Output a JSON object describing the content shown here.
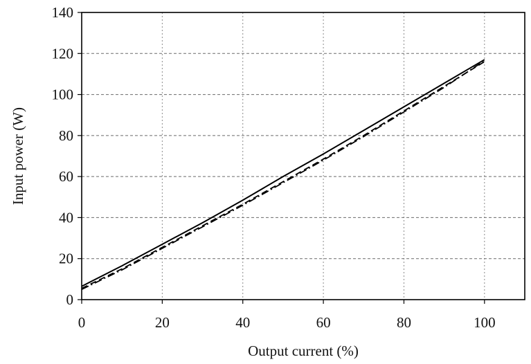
{
  "chart_data": {
    "type": "line",
    "title": "",
    "xlabel": "Output current (%)",
    "ylabel": "Input power (W)",
    "xlim": [
      0,
      110
    ],
    "ylim": [
      0,
      140
    ],
    "x_ticks": [
      0,
      20,
      40,
      60,
      80,
      100
    ],
    "y_ticks": [
      0,
      20,
      40,
      60,
      80,
      100,
      120,
      140
    ],
    "x_tick_labels": [
      "0",
      "20",
      "40",
      "60",
      "80",
      "100"
    ],
    "y_tick_labels": [
      "0",
      "20",
      "40",
      "60",
      "80",
      "100",
      "120",
      "140"
    ],
    "grid": true,
    "legend": "none",
    "series": [
      {
        "line_style": "solid",
        "color": "#000000",
        "x": [
          0,
          10,
          20,
          30,
          40,
          50,
          60,
          70,
          80,
          90,
          100
        ],
        "y": [
          6.5,
          16.5,
          27,
          37.5,
          48.5,
          60,
          71,
          82.5,
          94,
          105.5,
          117
        ]
      },
      {
        "line_style": "dashed",
        "color": "#000000",
        "x": [
          0,
          10,
          20,
          30,
          40,
          50,
          60,
          70,
          80,
          90,
          100
        ],
        "y": [
          5.5,
          15,
          25.5,
          36,
          46.5,
          57.5,
          68.5,
          80,
          92,
          104,
          116
        ]
      },
      {
        "line_style": "dash-dot",
        "color": "#000000",
        "x": [
          0,
          10,
          20,
          30,
          40,
          50,
          60,
          70,
          80,
          90,
          100
        ],
        "y": [
          5,
          14.5,
          25,
          35.5,
          46,
          57,
          68,
          79.5,
          91.5,
          103.5,
          116.5
        ]
      }
    ]
  }
}
